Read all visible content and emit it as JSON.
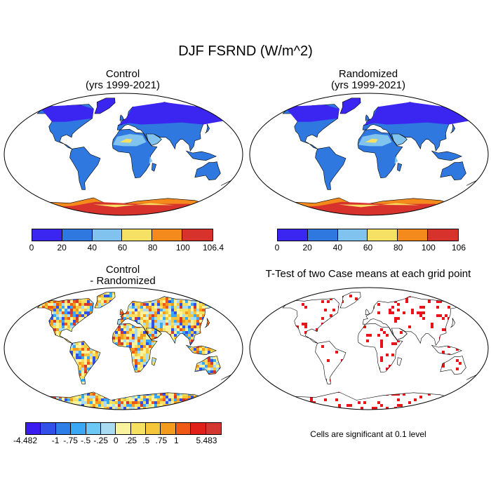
{
  "figure": {
    "title": "DJF FSRND (W/m^2)"
  },
  "panels": {
    "control": {
      "title": "Control",
      "subtitle": "(yrs 1999-2021)",
      "colorbar": {
        "colors": [
          "#3a26f0",
          "#2e78e0",
          "#7fc3ee",
          "#f6e164",
          "#f58a1c",
          "#d7322c"
        ],
        "labels": [
          "0",
          "20",
          "40",
          "60",
          "80",
          "100",
          "106.4"
        ]
      }
    },
    "randomized": {
      "title": "Randomized",
      "subtitle": "(yrs 1999-2021)",
      "colorbar": {
        "colors": [
          "#3a26f0",
          "#2e78e0",
          "#7fc3ee",
          "#f6e164",
          "#f58a1c",
          "#d7322c"
        ],
        "labels": [
          "0",
          "20",
          "40",
          "60",
          "80",
          "100",
          "106"
        ]
      }
    },
    "difference": {
      "title": "Control",
      "subtitle": "- Randomized",
      "colorbar": {
        "colors": [
          "#3a1cf0",
          "#3050e8",
          "#2e7ee8",
          "#3aa8f4",
          "#6cc8f4",
          "#a9dcf2",
          "#f8f39c",
          "#f6e060",
          "#f5c53a",
          "#f49a1c",
          "#ee5a14",
          "#e2201a",
          "#d43630"
        ],
        "labels": [
          "-4.482",
          "",
          "-1",
          "-.75",
          "-.5",
          "-.25",
          "0",
          ".25",
          ".5",
          ".75",
          "1",
          "",
          "5.483"
        ]
      }
    },
    "ttest": {
      "title": "T-Test of two Case means at each grid point",
      "note": "Cells are significant at 0.1 level",
      "color": "#e8141a"
    }
  }
}
